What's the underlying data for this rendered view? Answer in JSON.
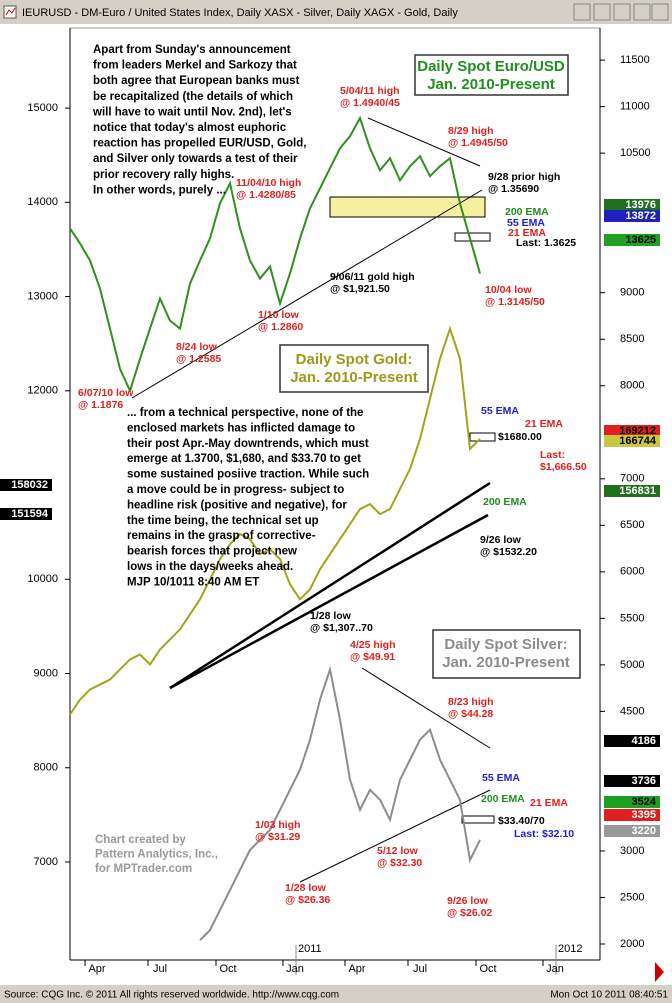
{
  "header": {
    "title": "IEURUSD - DM-Euro / United States Index, Daily    XASX - Silver, Daily    XAGX - Gold, Daily"
  },
  "footer": {
    "source": "Source: CQG Inc. © 2011 All rights reserved worldwide. http://www.cqg.com",
    "timestamp": "Mon Oct 10 2011 08:40:51"
  },
  "chart_data": {
    "type": "line",
    "x_labels": [
      "Apr",
      "Jul",
      "Oct",
      "Jan",
      "Apr",
      "Jul",
      "Oct",
      "Jan"
    ],
    "year_labels": [
      "2011",
      "2012"
    ],
    "ylim": [
      5960,
      15850
    ],
    "yticks": [
      15000,
      14000,
      13000,
      12000,
      10000,
      9000,
      8000,
      7000
    ],
    "y2lim": [
      1828,
      11845
    ],
    "y2ticks": [
      11500,
      11000,
      10500,
      9000,
      8500,
      8000,
      7000,
      6500,
      6000,
      5500,
      5000,
      4500,
      3000,
      2500,
      2000
    ],
    "series": [
      {
        "name": "EUR/USD",
        "color": "#2f8f1f",
        "values": [
          13723,
          13564,
          13383,
          13085,
          12660,
          12234,
          12000,
          12340,
          12660,
          12979,
          12745,
          12660,
          13138,
          13383,
          13617,
          13989,
          14202,
          13723,
          13383,
          13191,
          13319,
          12926,
          13245,
          13617,
          13936,
          14149,
          14362,
          14574,
          14702,
          14894,
          14574,
          14340,
          14468,
          14234,
          14383,
          14489,
          14277,
          14383,
          14468,
          13989,
          13617,
          13245
        ]
      },
      {
        "name": "Gold",
        "color": "#a3a31a",
        "values": [
          8564,
          8723,
          8830,
          8883,
          8936,
          9043,
          9149,
          9202,
          9096,
          9255,
          9362,
          9468,
          9628,
          9787,
          10000,
          10213,
          10372,
          10479,
          10426,
          10266,
          10319,
          10213,
          9947,
          9787,
          9894,
          10106,
          10266,
          10426,
          10585,
          10745,
          10798,
          10691,
          10745,
          10957,
          11170,
          11489,
          11915,
          12340,
          12660,
          12340,
          11383,
          11489
        ]
      },
      {
        "name": "Silver",
        "color": "#8c8c8c",
        "values": [
          null,
          null,
          null,
          null,
          null,
          null,
          null,
          null,
          null,
          null,
          null,
          null,
          null,
          6170,
          6277,
          6490,
          6702,
          6915,
          7128,
          7234,
          7341,
          7553,
          7766,
          7979,
          8298,
          8723,
          9043,
          8511,
          7872,
          7553,
          7766,
          7660,
          7447,
          7872,
          8085,
          8298,
          8404,
          8085,
          7872,
          7660,
          7021,
          7234
        ]
      }
    ],
    "title_boxes": [
      {
        "lines": [
          "Daily Spot Euro/USD",
          "Jan. 2010-Present"
        ],
        "color": "#1f8f1f"
      },
      {
        "lines": [
          "Daily Spot Gold:",
          "Jan. 2010-Present"
        ],
        "color": "#9a9a1a"
      },
      {
        "lines": [
          "Daily Spot Silver:",
          "Jan. 2010-Present"
        ],
        "color": "#8c8c8c"
      }
    ],
    "paragraphs": [
      {
        "lines": [
          "Apart from Sunday's announcement",
          "from leaders Merkel and Sarkozy that",
          "both agree that European banks must",
          "be recapitalized (the details of which",
          "will have to wait until Nov. 2nd), let's",
          "notice that today's almost euphoric",
          "reaction has propelled EUR/USD, Gold,",
          "and Silver only towards a test of their",
          "prior recovery rally highs.",
          "In other words, purely ..."
        ],
        "color": "#000000"
      },
      {
        "lines": [
          "... from a technical perspective, none of the",
          "enclosed markets has inflicted damage to",
          "their post Apr.-May downtrends, which must",
          "emerge at 1.3700, $1,680, and $33.70 to get",
          "some sustained posiive traction. While such",
          "a move could be in progress- subject to",
          "headline risk (positive and negative), for",
          "the time being, the technical set up",
          "remains in the grasp of corrective-",
          "bearish forces that project new",
          "lows in the days/weeks ahead.",
          "MJP 10/1011  8:40 AM ET"
        ],
        "color": "#000000"
      },
      {
        "lines": [
          "Chart created by",
          "Pattern Analytics, Inc.,",
          "for MPTrader.com"
        ],
        "color": "#999999"
      }
    ],
    "annotations": [
      {
        "lines": [
          "5/04/11 high",
          "@ 1.4940/45"
        ],
        "color": "#e02020"
      },
      {
        "lines": [
          "8/29 high",
          "@ 1.4945/50"
        ],
        "color": "#e02020"
      },
      {
        "lines": [
          "9/28 prior high",
          "@ 1.35690"
        ],
        "color": "#000000"
      },
      {
        "lines": [
          "11/04/10 high",
          "@ 1.4280/85"
        ],
        "color": "#e02020"
      },
      {
        "lines": [
          "200 EMA"
        ],
        "color": "#1f8f1f"
      },
      {
        "lines": [
          "55 EMA"
        ],
        "color": "#2020d0"
      },
      {
        "lines": [
          "21 EMA"
        ],
        "color": "#e02020"
      },
      {
        "lines": [
          "Last: 1.3625"
        ],
        "color": "#000000"
      },
      {
        "lines": [
          "9/06/11 gold high",
          "@ $1,921.50"
        ],
        "color": "#000000"
      },
      {
        "lines": [
          "10/04 low",
          "@ 1.3145/50"
        ],
        "color": "#e02020"
      },
      {
        "lines": [
          "1/10 low",
          "@ 1.2860"
        ],
        "color": "#e02020"
      },
      {
        "lines": [
          "8/24 low",
          "@ 1.2585"
        ],
        "color": "#e02020"
      },
      {
        "lines": [
          "6/07/10 low",
          "@ 1.1876"
        ],
        "color": "#e02020"
      },
      {
        "lines": [
          "55 EMA"
        ],
        "color": "#2020d0"
      },
      {
        "lines": [
          "21 EMA"
        ],
        "color": "#e02020"
      },
      {
        "lines": [
          "$1680.00"
        ],
        "color": "#000000"
      },
      {
        "lines": [
          "Last:",
          "$1,666.50"
        ],
        "color": "#e02020"
      },
      {
        "lines": [
          "200 EMA"
        ],
        "color": "#1f8f1f"
      },
      {
        "lines": [
          "9/26 low",
          "@ $1532.20"
        ],
        "color": "#000000"
      },
      {
        "lines": [
          "1/28 low",
          "@ $1,307..70"
        ],
        "color": "#000000"
      },
      {
        "lines": [
          "4/25 high",
          "@ $49.91"
        ],
        "color": "#e02020"
      },
      {
        "lines": [
          "8/23 high",
          "@ $44.28"
        ],
        "color": "#e02020"
      },
      {
        "lines": [
          "55 EMA"
        ],
        "color": "#2020d0"
      },
      {
        "lines": [
          "200 EMA"
        ],
        "color": "#1f8f1f"
      },
      {
        "lines": [
          "21 EMA"
        ],
        "color": "#e02020"
      },
      {
        "lines": [
          "$33.40/70"
        ],
        "color": "#000000"
      },
      {
        "lines": [
          "Last: $32.10"
        ],
        "color": "#2020d0"
      },
      {
        "lines": [
          "1/03 high",
          "@ $31.29"
        ],
        "color": "#e02020"
      },
      {
        "lines": [
          "5/12 low",
          "@ $32.30"
        ],
        "color": "#e02020"
      },
      {
        "lines": [
          "1/28 low",
          "@ $26.36"
        ],
        "color": "#e02020"
      },
      {
        "lines": [
          "9/26 low",
          "@ $26.02"
        ],
        "color": "#e02020"
      }
    ],
    "price_badges": [
      {
        "text": "158032",
        "bg": "#000000",
        "fg": "#ffffff"
      },
      {
        "text": "151594",
        "bg": "#000000",
        "fg": "#ffffff"
      },
      {
        "text": "13976",
        "bg": "#1f6f1f",
        "fg": "#ffffff"
      },
      {
        "text": "13872",
        "bg": "#2020c0",
        "fg": "#ffffff"
      },
      {
        "text": "13625",
        "bg": "#20a020",
        "fg": "#000000"
      },
      {
        "text": "169212",
        "bg": "#e02020",
        "fg": "#000000"
      },
      {
        "text": "166744",
        "bg": "#c8c840",
        "fg": "#000000"
      },
      {
        "text": "156831",
        "bg": "#1f6f1f",
        "fg": "#ffffff"
      },
      {
        "text": "4186",
        "bg": "#000000",
        "fg": "#ffffff"
      },
      {
        "text": "3736",
        "bg": "#000000",
        "fg": "#ffffff"
      },
      {
        "text": "3524",
        "bg": "#20a020",
        "fg": "#000000"
      },
      {
        "text": "3395",
        "bg": "#e02020",
        "fg": "#ffffff"
      },
      {
        "text": "3220",
        "bg": "#999999",
        "fg": "#ffffff"
      }
    ]
  }
}
